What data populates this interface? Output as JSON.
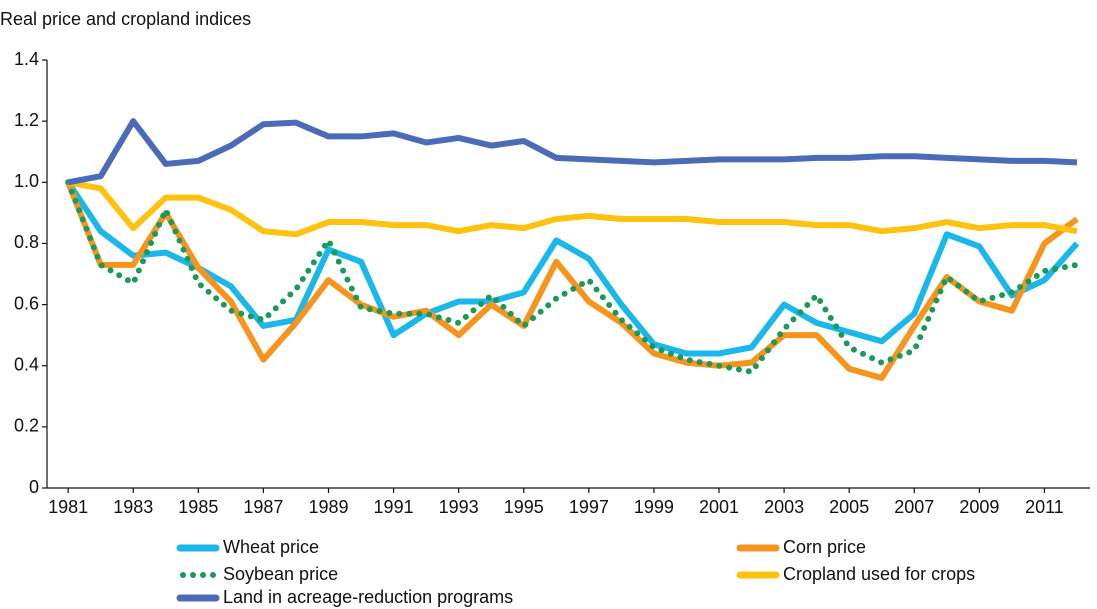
{
  "chart_data": {
    "type": "line",
    "y_axis_label": "Real price and cropland indices",
    "x": [
      1981,
      1982,
      1983,
      1984,
      1985,
      1986,
      1987,
      1988,
      1989,
      1990,
      1991,
      1992,
      1993,
      1994,
      1995,
      1996,
      1997,
      1998,
      1999,
      2000,
      2001,
      2002,
      2003,
      2004,
      2005,
      2006,
      2007,
      2008,
      2009,
      2010,
      2011,
      2012
    ],
    "xlim": [
      1980.35,
      2012.4
    ],
    "xticks": [
      1981,
      1983,
      1985,
      1987,
      1989,
      1991,
      1993,
      1995,
      1997,
      1999,
      2001,
      2003,
      2005,
      2007,
      2009,
      2011
    ],
    "ylim": [
      0,
      1.4
    ],
    "yticks": [
      0,
      0.2,
      0.4,
      0.6,
      0.8,
      {
        "value": 1,
        "label": "1.0"
      },
      1.2,
      1.4
    ],
    "grid": false,
    "series": [
      {
        "name": "Wheat price",
        "color": "#1ab7ea",
        "style": "solid",
        "values": [
          1.0,
          0.84,
          0.76,
          0.77,
          0.72,
          0.66,
          0.53,
          0.55,
          0.78,
          0.74,
          0.5,
          0.57,
          0.61,
          0.61,
          0.64,
          0.81,
          0.75,
          0.6,
          0.47,
          0.44,
          0.44,
          0.46,
          0.6,
          0.54,
          0.51,
          0.48,
          0.57,
          0.83,
          0.79,
          0.63,
          0.68,
          0.8
        ]
      },
      {
        "name": "Corn price",
        "color": "#f7941d",
        "style": "solid",
        "values": [
          1.0,
          0.73,
          0.73,
          0.9,
          0.72,
          0.61,
          0.42,
          0.54,
          0.68,
          0.6,
          0.56,
          0.58,
          0.5,
          0.6,
          0.53,
          0.74,
          0.61,
          0.54,
          0.44,
          0.41,
          0.4,
          0.41,
          0.5,
          0.5,
          0.39,
          0.36,
          0.53,
          0.69,
          0.61,
          0.58,
          0.8,
          0.88
        ]
      },
      {
        "name": "Soybean price",
        "color": "#1a9a5a",
        "style": "dotted",
        "values": [
          1.0,
          0.73,
          0.67,
          0.91,
          0.67,
          0.58,
          0.55,
          0.65,
          0.81,
          0.59,
          0.57,
          0.57,
          0.54,
          0.63,
          0.53,
          0.62,
          0.68,
          0.55,
          0.46,
          0.42,
          0.4,
          0.38,
          0.52,
          0.63,
          0.46,
          0.41,
          0.45,
          0.69,
          0.61,
          0.64,
          0.71,
          0.73
        ]
      },
      {
        "name": "Cropland used for crops",
        "color": "#ffc20e",
        "style": "solid",
        "values": [
          1.0,
          0.98,
          0.85,
          0.95,
          0.95,
          0.91,
          0.84,
          0.83,
          0.87,
          0.87,
          0.86,
          0.86,
          0.84,
          0.86,
          0.85,
          0.88,
          0.89,
          0.88,
          0.88,
          0.88,
          0.87,
          0.87,
          0.87,
          0.86,
          0.86,
          0.84,
          0.85,
          0.87,
          0.85,
          0.86,
          0.86,
          0.84
        ]
      },
      {
        "name": "Land in acreage-reduction programs",
        "color": "#4a6cb8",
        "style": "solid",
        "values": [
          1.0,
          1.02,
          1.2,
          1.06,
          1.07,
          1.12,
          1.19,
          1.195,
          1.15,
          1.15,
          1.16,
          1.13,
          1.145,
          1.12,
          1.135,
          1.08,
          1.075,
          1.07,
          1.065,
          1.07,
          1.075,
          1.075,
          1.075,
          1.08,
          1.08,
          1.085,
          1.085,
          1.08,
          1.075,
          1.07,
          1.07,
          1.065
        ]
      }
    ]
  }
}
